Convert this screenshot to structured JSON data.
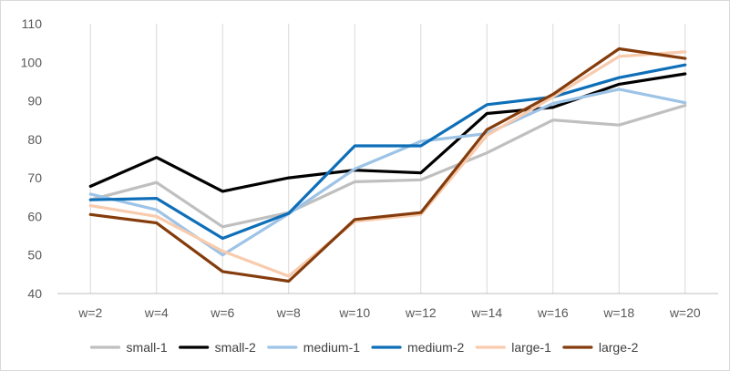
{
  "chart_data": {
    "type": "line",
    "title": "",
    "xlabel": "",
    "ylabel": "",
    "categories": [
      "w=2",
      "w=4",
      "w=6",
      "w=8",
      "w=10",
      "w=12",
      "w=14",
      "w=16",
      "w=18",
      "w=20"
    ],
    "ylim": [
      40,
      110
    ],
    "yticks": [
      40,
      50,
      60,
      70,
      80,
      90,
      100,
      110
    ],
    "grid": "vertical",
    "legend": "bottom",
    "series": [
      {
        "name": "small-1",
        "color": "#bfbfbf",
        "values": [
          64.3,
          68.8,
          57.3,
          61.0,
          69.0,
          69.5,
          76.5,
          85.0,
          83.7,
          88.8
        ]
      },
      {
        "name": "small-2",
        "color": "#000000",
        "values": [
          67.8,
          75.3,
          66.5,
          70.0,
          72.0,
          71.3,
          86.7,
          88.3,
          94.3,
          97.0
        ]
      },
      {
        "name": "medium-1",
        "color": "#9dc3e6",
        "values": [
          65.8,
          61.7,
          50.0,
          60.7,
          72.3,
          79.5,
          81.5,
          89.3,
          93.0,
          89.5
        ]
      },
      {
        "name": "medium-2",
        "color": "#0e6fb8",
        "values": [
          64.3,
          64.7,
          54.3,
          60.8,
          78.3,
          78.3,
          89.0,
          91.0,
          96.0,
          99.3
        ]
      },
      {
        "name": "large-1",
        "color": "#f8cbad",
        "values": [
          62.8,
          60.0,
          51.0,
          44.5,
          58.7,
          60.5,
          81.0,
          91.0,
          101.5,
          102.7
        ]
      },
      {
        "name": "large-2",
        "color": "#843c0c",
        "values": [
          60.5,
          58.3,
          45.7,
          43.2,
          59.2,
          61.0,
          82.5,
          91.7,
          103.5,
          101.0
        ]
      }
    ]
  }
}
